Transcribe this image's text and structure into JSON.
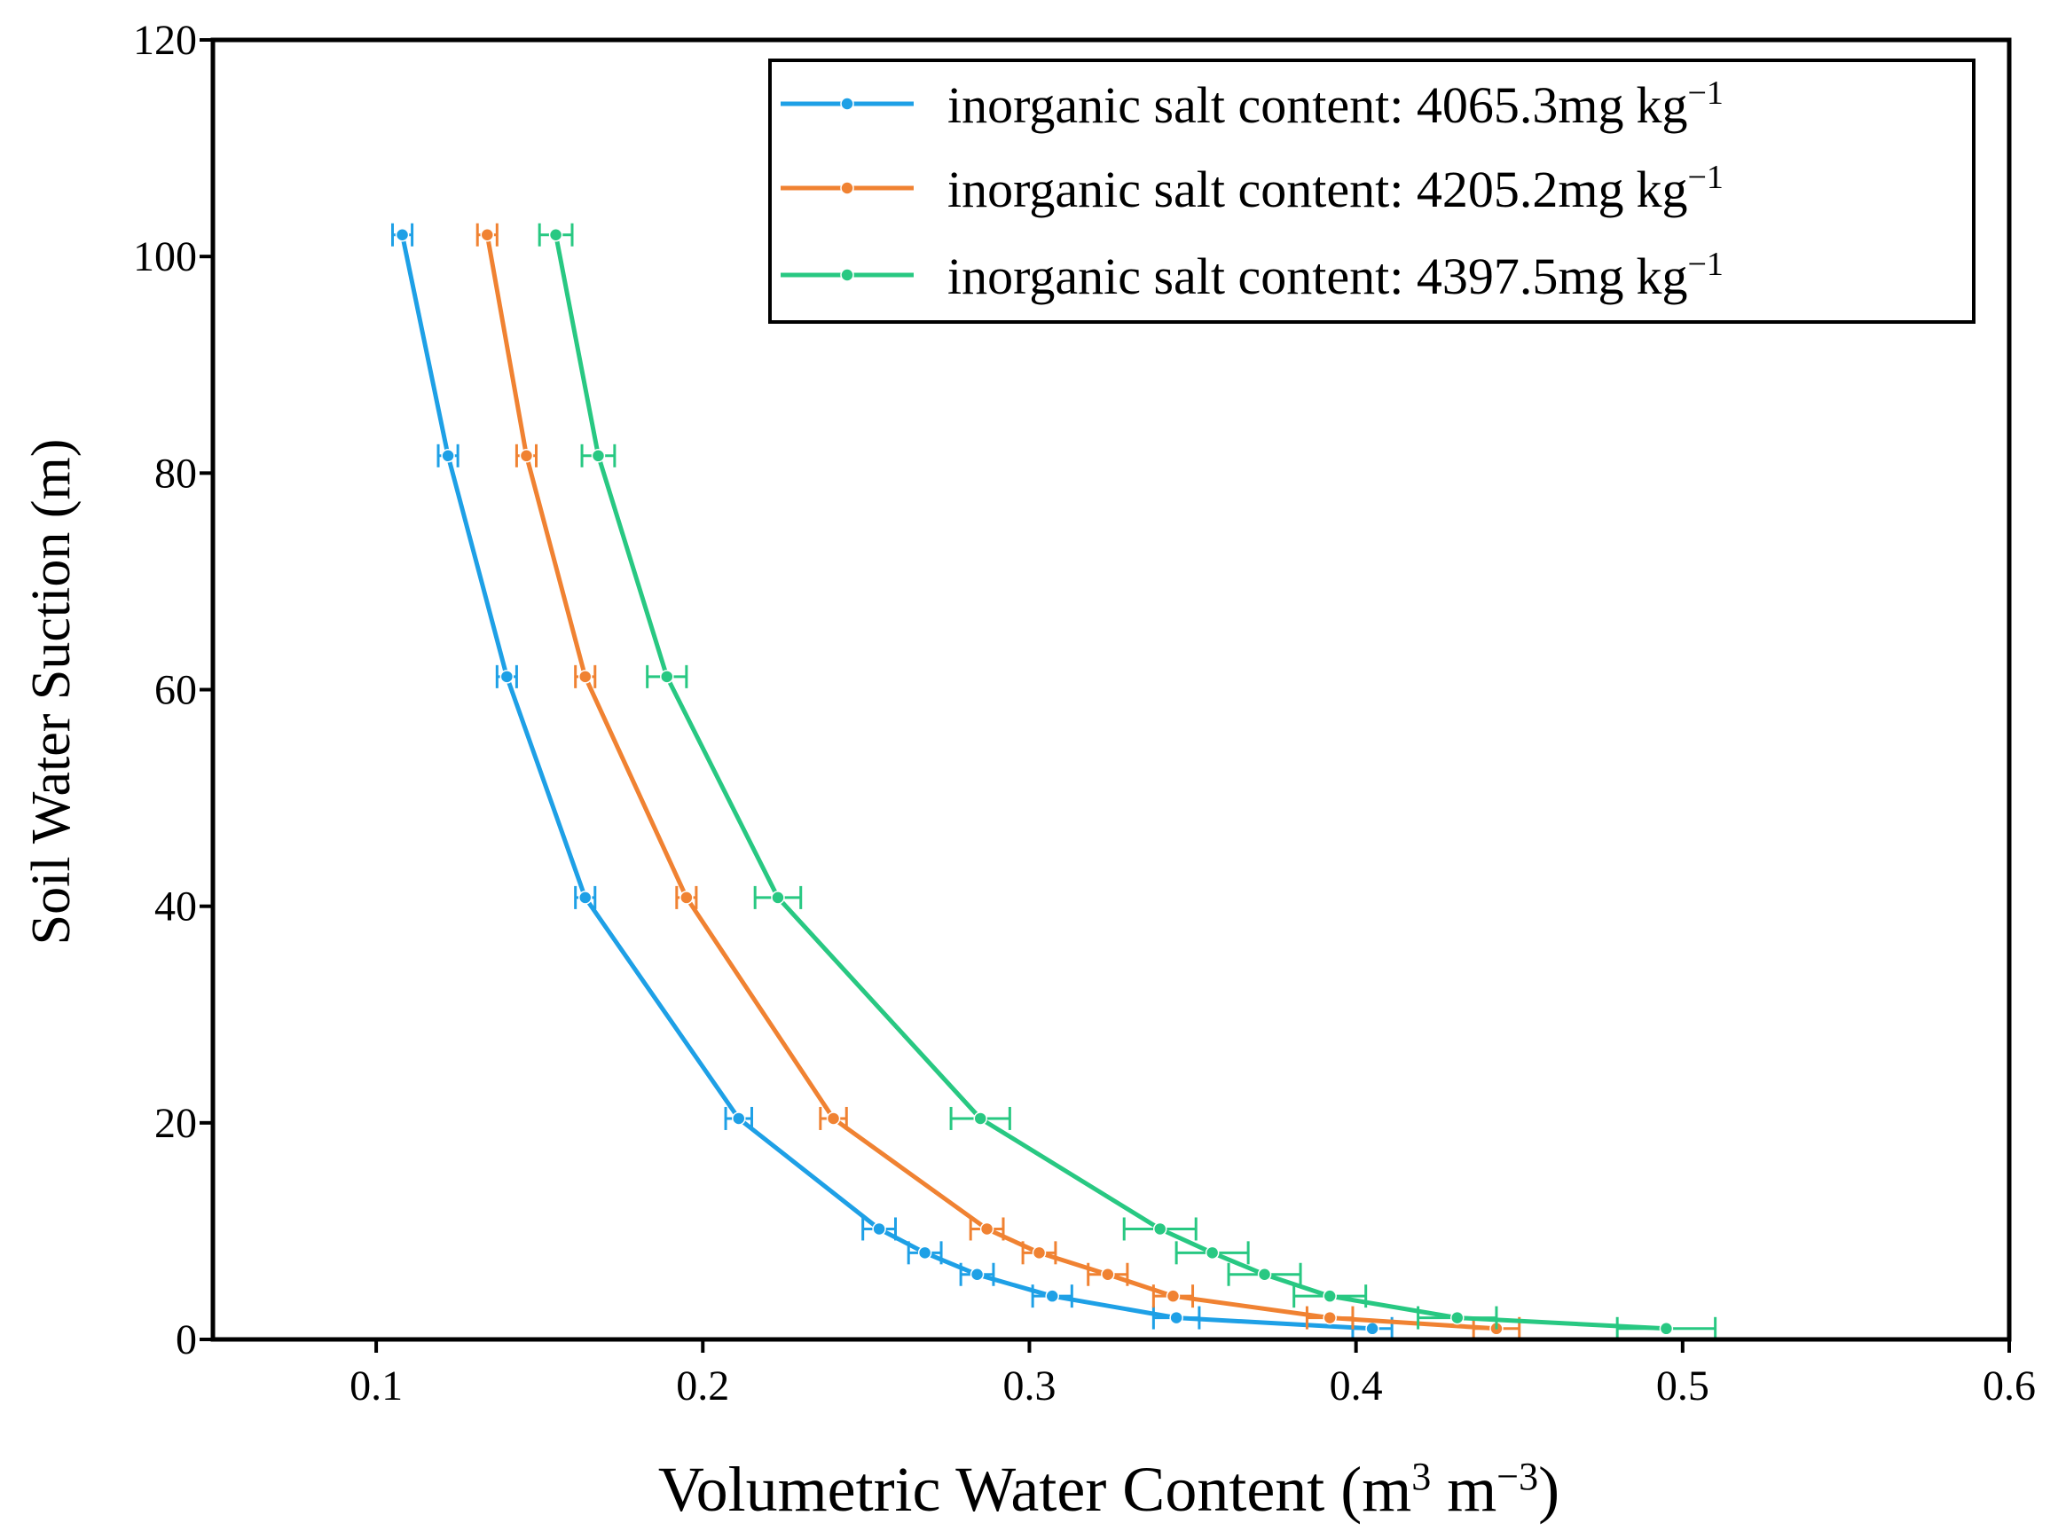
{
  "chart_data": {
    "type": "line",
    "xlabel": "Volumetric Water Content (m",
    "xlabel_unit_sup1": "3",
    "xlabel_unit_mid": " m",
    "xlabel_unit_sup2": "−3",
    "xlabel_close": ")",
    "ylabel": "Soil Water Suction (m)",
    "xlim": [
      0.05,
      0.6
    ],
    "ylim": [
      0,
      120
    ],
    "xticks": [
      0.1,
      0.2,
      0.3,
      0.4,
      0.5,
      0.6
    ],
    "xtick_labels": [
      "0.1",
      "0.2",
      "0.3",
      "0.4",
      "0.5",
      "0.6"
    ],
    "yticks": [
      0,
      20,
      40,
      60,
      80,
      100,
      120
    ],
    "ytick_labels": [
      "0",
      "20",
      "40",
      "60",
      "80",
      "100",
      "120"
    ],
    "legend_position": "top-right",
    "y_values": [
      1,
      2,
      4,
      6,
      8,
      10.2,
      20.4,
      40.8,
      61.2,
      81.6,
      102
    ],
    "series": [
      {
        "name": "inorganic salt content: 4065.3mg",
        "unit": "kg",
        "unit_sup": "−1",
        "color": "#1ea0e6",
        "x": [
          0.405,
          0.345,
          0.307,
          0.284,
          0.268,
          0.254,
          0.211,
          0.164,
          0.14,
          0.122,
          0.108
        ],
        "xerr": [
          0.006,
          0.007,
          0.006,
          0.005,
          0.005,
          0.005,
          0.004,
          0.003,
          0.003,
          0.003,
          0.003
        ]
      },
      {
        "name": "inorganic salt content: 4205.2mg",
        "unit": "kg",
        "unit_sup": "−1",
        "color": "#f08232",
        "x": [
          0.443,
          0.392,
          0.344,
          0.324,
          0.303,
          0.287,
          0.24,
          0.195,
          0.164,
          0.146,
          0.134
        ],
        "xerr": [
          0.007,
          0.007,
          0.006,
          0.006,
          0.005,
          0.005,
          0.004,
          0.003,
          0.003,
          0.003,
          0.003
        ]
      },
      {
        "name": "inorganic salt content: 4397.5mg",
        "unit": "kg",
        "unit_sup": "−1",
        "color": "#28c882",
        "x": [
          0.495,
          0.431,
          0.392,
          0.372,
          0.356,
          0.34,
          0.285,
          0.223,
          0.189,
          0.168,
          0.155
        ],
        "xerr": [
          0.015,
          0.012,
          0.011,
          0.011,
          0.011,
          0.011,
          0.009,
          0.007,
          0.006,
          0.005,
          0.005
        ]
      }
    ]
  }
}
